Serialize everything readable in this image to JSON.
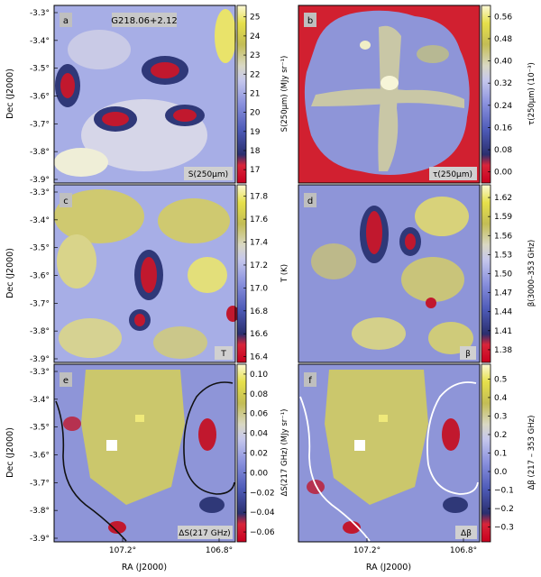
{
  "figure": {
    "object_name": "G218.06+2.12",
    "axes": {
      "x_label": "RA (J2000)",
      "y_label": "Dec (J2000)",
      "x_ticks": [
        "107.2°",
        "106.8°"
      ],
      "y_ticks": [
        "-3.3°",
        "-3.4°",
        "-3.5°",
        "-3.6°",
        "-3.7°",
        "-3.8°",
        "-3.9°"
      ]
    },
    "panels": [
      {
        "id": "a",
        "letter": "a",
        "map_label": "S(250μm)",
        "colorbar_label": "S(250μm) (MJy sr⁻¹)",
        "colorbar_ticks": [
          "25",
          "24",
          "23",
          "22",
          "21",
          "20",
          "19",
          "18",
          "17"
        ],
        "colorbar_range": [
          16.3,
          25.6
        ],
        "colormap": "red-blue-white-yellow",
        "has_object_label": true
      },
      {
        "id": "b",
        "letter": "b",
        "map_label": "τ(250μm)",
        "colorbar_label": "τ(250μm) (10⁻³)",
        "colorbar_ticks": [
          "0.56",
          "0.48",
          "0.40",
          "0.32",
          "0.24",
          "0.16",
          "0.08",
          "0.00"
        ],
        "colorbar_range": [
          -0.04,
          0.6
        ],
        "colormap": "red-blue-white-yellow"
      },
      {
        "id": "c",
        "letter": "c",
        "map_label": "T",
        "colorbar_label": "T (K)",
        "colorbar_ticks": [
          "17.8",
          "17.6",
          "17.4",
          "17.2",
          "17.0",
          "16.8",
          "16.6",
          "16.4"
        ],
        "colorbar_range": [
          16.35,
          17.9
        ],
        "colormap": "red-blue-white-yellow"
      },
      {
        "id": "d",
        "letter": "d",
        "map_label": "β",
        "colorbar_label": "β(3000–353 GHz)",
        "colorbar_ticks": [
          "1.62",
          "1.59",
          "1.56",
          "1.53",
          "1.50",
          "1.47",
          "1.44",
          "1.41",
          "1.38"
        ],
        "colorbar_range": [
          1.36,
          1.64
        ],
        "colormap": "red-blue-white-yellow"
      },
      {
        "id": "e",
        "letter": "e",
        "map_label": "ΔS(217 GHz)",
        "colorbar_label": "ΔS(217 GHz) (MJy sr⁻¹)",
        "colorbar_ticks": [
          "0.10",
          "0.08",
          "0.06",
          "0.04",
          "0.02",
          "0.00",
          "−0.02",
          "−0.04",
          "−0.06"
        ],
        "colorbar_range": [
          -0.07,
          0.11
        ],
        "colormap": "red-blue-white-yellow",
        "contour_color": "#111111"
      },
      {
        "id": "f",
        "letter": "f",
        "map_label": "Δβ",
        "colorbar_label": "Δβ (217 – 353 GHz)",
        "colorbar_ticks": [
          "0.5",
          "0.4",
          "0.3",
          "0.2",
          "0.1",
          "0.0",
          "−0.1",
          "−0.2",
          "−0.3"
        ],
        "colorbar_range": [
          -0.38,
          0.58
        ],
        "colormap": "red-blue-white-yellow",
        "contour_color": "#ffffff"
      }
    ]
  }
}
